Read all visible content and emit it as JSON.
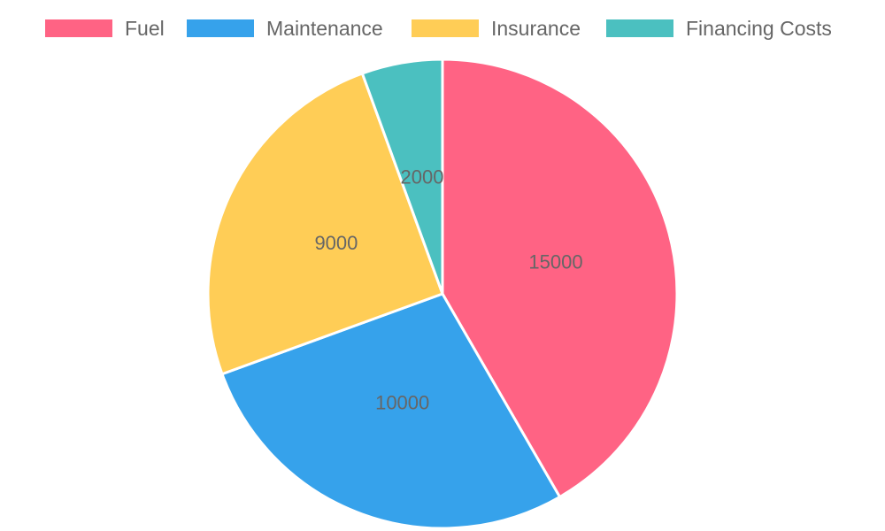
{
  "chart_data": {
    "type": "pie",
    "categories": [
      "Fuel",
      "Maintenance",
      "Insurance",
      "Financing Costs"
    ],
    "values": [
      15000,
      10000,
      9000,
      2000
    ],
    "colors": [
      "#ff6384",
      "#36a2eb",
      "#ffcd56",
      "#4bc0c0"
    ],
    "data_labels": [
      "15000",
      "10000",
      "9000",
      "2000"
    ],
    "legend_position": "top",
    "slice_border_color": "#ffffff",
    "label_color": "#666666"
  }
}
